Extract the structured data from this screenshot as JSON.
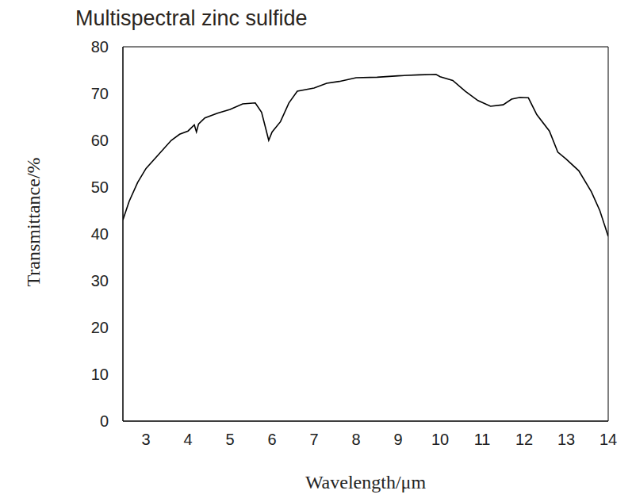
{
  "chart_data": {
    "type": "line",
    "title": "Multispectral zinc sulfide",
    "xlabel": "Wavelength/μm",
    "ylabel": "Transmittance/%",
    "x": [
      2.45,
      2.6,
      2.8,
      3.0,
      3.3,
      3.6,
      3.8,
      4.0,
      4.15,
      4.2,
      4.25,
      4.4,
      4.7,
      5.0,
      5.3,
      5.6,
      5.75,
      5.85,
      5.92,
      6.0,
      6.2,
      6.4,
      6.6,
      7.0,
      7.3,
      7.6,
      8.0,
      8.5,
      9.0,
      9.5,
      9.9,
      10.0,
      10.3,
      10.6,
      10.9,
      11.2,
      11.5,
      11.7,
      11.9,
      12.1,
      12.3,
      12.6,
      12.8,
      13.0,
      13.3,
      13.6,
      13.8,
      14.0
    ],
    "values": [
      43,
      47,
      51,
      54,
      57,
      60,
      61.3,
      62,
      63.3,
      61.8,
      63.5,
      64.8,
      65.8,
      66.6,
      67.8,
      68,
      66,
      62.5,
      60,
      61.8,
      64,
      68,
      70.5,
      71.2,
      72.2,
      72.6,
      73.4,
      73.5,
      73.8,
      74,
      74.1,
      73.6,
      72.8,
      70.5,
      68.5,
      67.3,
      67.6,
      68.8,
      69.2,
      69.1,
      65.5,
      62,
      57.5,
      56,
      53.5,
      49,
      45,
      39.5
    ],
    "color": "#000000",
    "xlim": [
      2.45,
      14
    ],
    "xticks": [
      3,
      4,
      5,
      6,
      7,
      8,
      9,
      10,
      11,
      12,
      13,
      14
    ],
    "ylim": [
      0,
      80
    ],
    "yticks": [
      0,
      10,
      20,
      30,
      40,
      50,
      60,
      70,
      80
    ],
    "grid": false
  }
}
